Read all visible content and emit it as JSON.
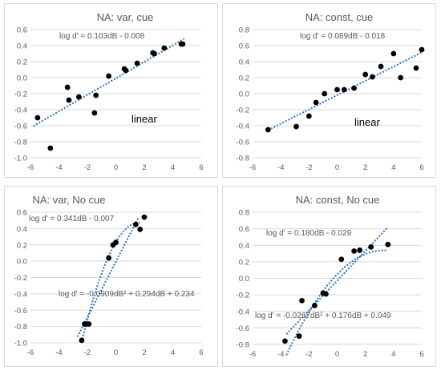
{
  "chart_data": [
    {
      "type": "scatter",
      "title": "NA: var, cue",
      "annotations": [
        "log d' = 0.103dB - 0.008",
        "linear"
      ],
      "xlim": [
        -6,
        6
      ],
      "ylim": [
        -1.0,
        0.6
      ],
      "xticks": [
        "-6",
        "-4",
        "-2",
        "0",
        "2",
        "4",
        "6"
      ],
      "yticks": [
        "-1.0",
        "-0.8",
        "-0.6",
        "-0.4",
        "-0.2",
        "0.0",
        "0.2",
        "0.4",
        "0.6"
      ],
      "grid": true,
      "points": [
        [
          -5.5,
          -0.5
        ],
        [
          -4.6,
          -0.88
        ],
        [
          -3.4,
          -0.12
        ],
        [
          -3.3,
          -0.28
        ],
        [
          -2.6,
          -0.24
        ],
        [
          -1.5,
          -0.44
        ],
        [
          -1.4,
          -0.22
        ],
        [
          -0.5,
          0.02
        ],
        [
          0.6,
          0.11
        ],
        [
          0.7,
          0.09
        ],
        [
          1.5,
          0.18
        ],
        [
          2.6,
          0.31
        ],
        [
          2.7,
          0.3
        ],
        [
          3.4,
          0.37
        ],
        [
          4.6,
          0.42
        ],
        [
          4.7,
          0.42
        ]
      ],
      "trendlines": [
        {
          "kind": "linear",
          "x_range": [
            -5.8,
            4.8
          ],
          "coef": [
            0.103,
            -0.008
          ]
        }
      ]
    },
    {
      "type": "scatter",
      "title": "NA: const, cue",
      "annotations": [
        "log d' = 0.089dB - 0.018",
        "linear"
      ],
      "xlim": [
        -6,
        6
      ],
      "ylim": [
        -0.8,
        0.8
      ],
      "xticks": [
        "-6",
        "-4",
        "-2",
        "0",
        "2",
        "4",
        "6"
      ],
      "yticks": [
        "-0.8",
        "-0.6",
        "-0.4",
        "-0.2",
        "0.0",
        "0.2",
        "0.4",
        "0.6",
        "0.8"
      ],
      "grid": true,
      "points": [
        [
          -4.9,
          -0.45
        ],
        [
          -2.9,
          -0.41
        ],
        [
          -2.0,
          -0.28
        ],
        [
          -1.5,
          -0.11
        ],
        [
          -0.9,
          0.0
        ],
        [
          0.0,
          0.05
        ],
        [
          0.5,
          0.05
        ],
        [
          1.2,
          0.07
        ],
        [
          2.0,
          0.24
        ],
        [
          2.5,
          0.21
        ],
        [
          3.1,
          0.34
        ],
        [
          4.0,
          0.5
        ],
        [
          4.5,
          0.2
        ],
        [
          5.6,
          0.32
        ],
        [
          6.0,
          0.55
        ]
      ],
      "trendlines": [
        {
          "kind": "linear",
          "x_range": [
            -4.9,
            6.0
          ],
          "coef": [
            0.089,
            -0.018
          ]
        }
      ]
    },
    {
      "type": "scatter",
      "title": "NA: var, No cue",
      "annotations": [
        "log d' = 0.341dB - 0.007",
        "log d' = -0.0909dB² + 0.294dB + 0.234"
      ],
      "xlim": [
        -6,
        6
      ],
      "ylim": [
        -1.0,
        0.6
      ],
      "xticks": [
        "-6",
        "-4",
        "-2",
        "0",
        "2",
        "4",
        "6"
      ],
      "yticks": [
        "-1.0",
        "-0.8",
        "-0.6",
        "-0.4",
        "-0.2",
        "0.0",
        "0.2",
        "0.4",
        "0.6"
      ],
      "grid": true,
      "points": [
        [
          -2.4,
          -0.97
        ],
        [
          -2.2,
          -0.77
        ],
        [
          -2.1,
          -0.77
        ],
        [
          -1.9,
          -0.77
        ],
        [
          -0.5,
          0.04
        ],
        [
          -0.2,
          0.2
        ],
        [
          0.0,
          0.23
        ],
        [
          1.4,
          0.45
        ],
        [
          1.7,
          0.39
        ],
        [
          2.0,
          0.54
        ]
      ],
      "trendlines": [
        {
          "kind": "linear",
          "x_range": [
            -2.7,
            1.6
          ],
          "coef": [
            0.341,
            -0.007
          ]
        },
        {
          "kind": "quadratic",
          "x_range": [
            -2.4,
            1.7
          ],
          "coef": [
            -0.0909,
            0.294,
            0.234
          ]
        }
      ]
    },
    {
      "type": "scatter",
      "title": "NA: const, No cue",
      "annotations": [
        "log d' = 0.180dB - 0.029",
        "log d' = -0.0267dB² + 0.176dB + 0.049"
      ],
      "xlim": [
        -6,
        6
      ],
      "ylim": [
        -0.8,
        0.8
      ],
      "xticks": [
        "-6",
        "-4",
        "-2",
        "0",
        "2",
        "4",
        "6"
      ],
      "yticks": [
        "-0.8",
        "-0.6",
        "-0.4",
        "-0.2",
        "0.0",
        "0.2",
        "0.4",
        "0.6",
        "0.8"
      ],
      "grid": true,
      "points": [
        [
          -3.7,
          -0.76
        ],
        [
          -2.7,
          -0.7
        ],
        [
          -2.5,
          -0.27
        ],
        [
          -1.6,
          -0.33
        ],
        [
          -1.0,
          -0.18
        ],
        [
          -0.8,
          -0.19
        ],
        [
          0.3,
          0.23
        ],
        [
          1.2,
          0.33
        ],
        [
          1.6,
          0.34
        ],
        [
          2.4,
          0.38
        ],
        [
          3.6,
          0.41
        ]
      ],
      "trendlines": [
        {
          "kind": "linear",
          "x_range": [
            -3.6,
            3.6
          ],
          "coef": [
            0.18,
            -0.029
          ]
        },
        {
          "kind": "quadratic",
          "x_range": [
            -3.6,
            3.6
          ],
          "coef": [
            -0.0267,
            0.176,
            0.049
          ]
        }
      ]
    }
  ]
}
